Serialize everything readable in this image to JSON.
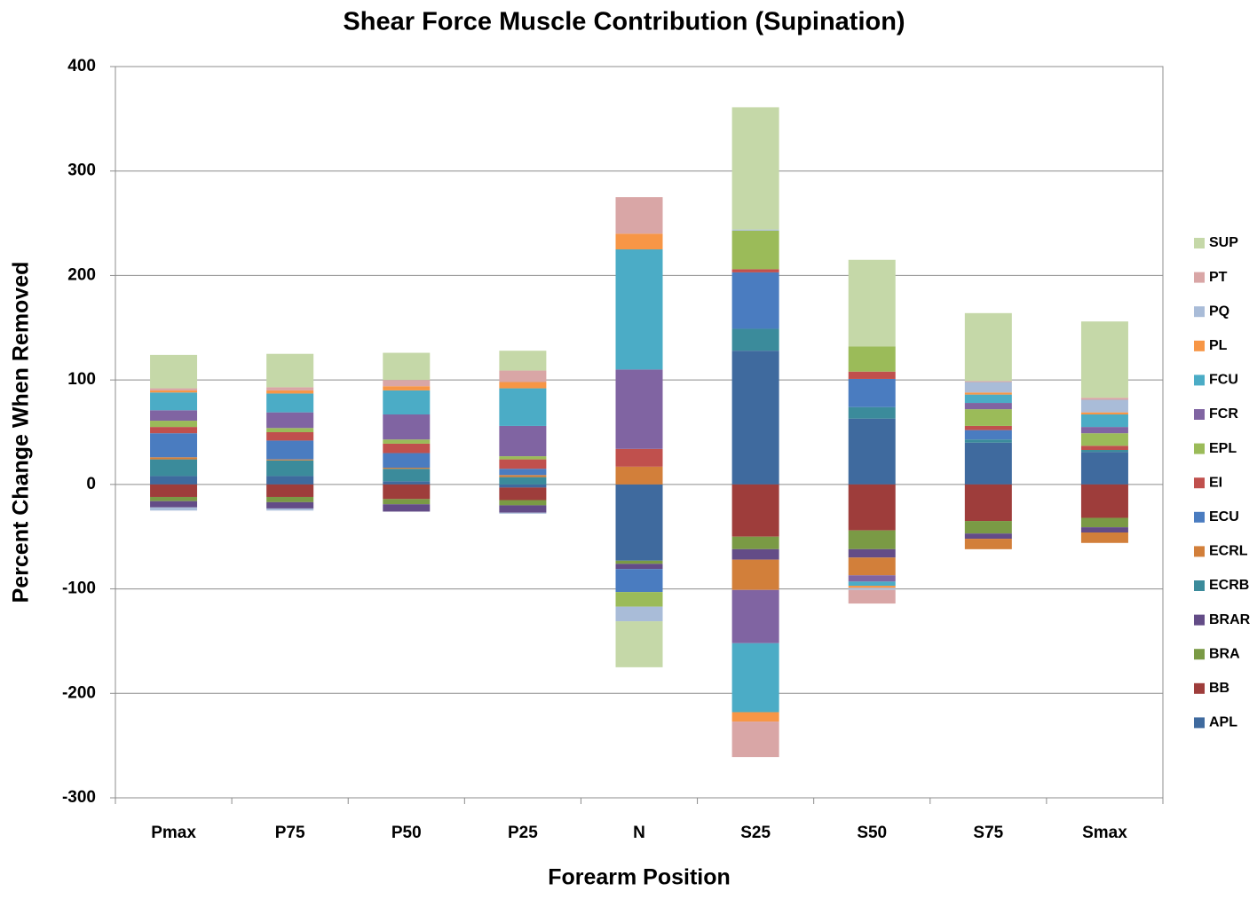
{
  "chart_data": {
    "type": "stacked-bar",
    "title": "Shear Force Muscle Contribution (Supination)",
    "x_label": "Forearm Position",
    "y_label": "Percent Change When Removed",
    "categories": [
      "Pmax",
      "P75",
      "P50",
      "P25",
      "N",
      "S25",
      "S50",
      "S75",
      "Smax"
    ],
    "ylim": [
      -300,
      400
    ],
    "yticks": [
      -300,
      -200,
      -100,
      0,
      100,
      200,
      300,
      400
    ],
    "grid": true,
    "legend": "right",
    "series": [
      {
        "name": "APL",
        "color": "#3f6a9e",
        "values": [
          8,
          8,
          3,
          -3,
          -73,
          128,
          63,
          40,
          31
        ]
      },
      {
        "name": "BB",
        "color": "#9e3d3b",
        "values": [
          -12,
          -12,
          -14,
          -12,
          0,
          -50,
          -44,
          -35,
          -32
        ]
      },
      {
        "name": "BRA",
        "color": "#7a9a45",
        "values": [
          -4,
          -5,
          -5,
          -5,
          -3,
          -12,
          -18,
          -12,
          -9
        ]
      },
      {
        "name": "BRAR",
        "color": "#634c87",
        "values": [
          -6,
          -6,
          -7,
          -7,
          -5,
          -10,
          -8,
          -5,
          -5
        ]
      },
      {
        "name": "ECRB",
        "color": "#3b8b9b",
        "values": [
          16,
          15,
          12,
          7,
          0,
          21,
          11,
          3,
          2
        ]
      },
      {
        "name": "ECRL",
        "color": "#d27f3a",
        "values": [
          2,
          1,
          1,
          2,
          17,
          -29,
          -17,
          -10,
          -10
        ]
      },
      {
        "name": "ECU",
        "color": "#4a7cc0",
        "values": [
          23,
          18,
          14,
          6,
          -22,
          54,
          27,
          9,
          0
        ]
      },
      {
        "name": "EI",
        "color": "#c0504d",
        "values": [
          6,
          8,
          9,
          9,
          17,
          3,
          7,
          4,
          4
        ]
      },
      {
        "name": "EPL",
        "color": "#9bbb59",
        "values": [
          6,
          4,
          4,
          3,
          -14,
          37,
          24,
          16,
          12
        ]
      },
      {
        "name": "FCR",
        "color": "#8064a2",
        "values": [
          10,
          15,
          24,
          29,
          76,
          -51,
          -6,
          6,
          6
        ]
      },
      {
        "name": "FCU",
        "color": "#4bacc6",
        "values": [
          17,
          18,
          23,
          36,
          115,
          -66,
          -4,
          8,
          12
        ]
      },
      {
        "name": "PL",
        "color": "#f79646",
        "values": [
          2,
          3,
          4,
          6,
          15,
          -9,
          -2,
          2,
          2
        ]
      },
      {
        "name": "PQ",
        "color": "#a9bcd8",
        "values": [
          -3,
          -2,
          0,
          -1,
          -14,
          1,
          -2,
          10,
          12
        ]
      },
      {
        "name": "PT",
        "color": "#d9a6a6",
        "values": [
          2,
          3,
          6,
          11,
          35,
          -34,
          -13,
          1,
          2
        ]
      },
      {
        "name": "SUP",
        "color": "#c5d8a8",
        "values": [
          32,
          32,
          26,
          19,
          -44,
          117,
          83,
          65,
          73
        ]
      }
    ]
  }
}
